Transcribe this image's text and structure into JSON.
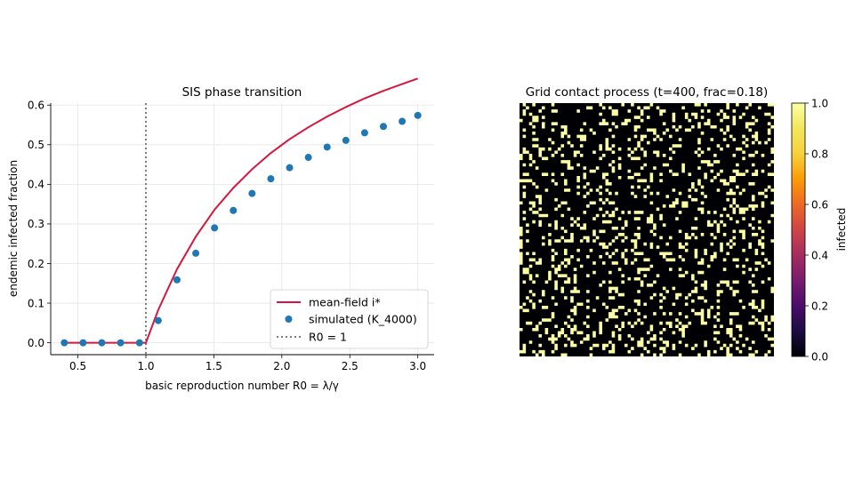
{
  "chart_data": [
    {
      "type": "line",
      "title": "SIS phase transition",
      "xlabel": "basic reproduction number R0 = λ/γ",
      "ylabel": "endemic infected fraction",
      "xlim": [
        0.3,
        3.12
      ],
      "ylim": [
        -0.03,
        0.605
      ],
      "x_ticks": [
        0.5,
        1.0,
        1.5,
        2.0,
        2.5,
        3.0
      ],
      "x_tick_labels": [
        "0.5",
        "1.0",
        "1.5",
        "2.0",
        "2.5",
        "3.0"
      ],
      "y_ticks": [
        0.0,
        0.1,
        0.2,
        0.3,
        0.4,
        0.5,
        0.6
      ],
      "y_tick_labels": [
        "0.0",
        "0.1",
        "0.2",
        "0.3",
        "0.4",
        "0.5",
        "0.6"
      ],
      "grid": true,
      "legend_position": "lower-right",
      "series": [
        {
          "name": "mean-field i*",
          "style": "line",
          "color": "#d6163e",
          "x": [
            0.4,
            0.538,
            0.676,
            0.814,
            0.953,
            1.0,
            1.091,
            1.229,
            1.367,
            1.505,
            1.643,
            1.781,
            1.919,
            2.057,
            2.195,
            2.333,
            2.471,
            2.609,
            2.747,
            2.885,
            3.0
          ],
          "y": [
            0,
            0,
            0,
            0,
            0,
            0,
            0.083,
            0.186,
            0.268,
            0.336,
            0.391,
            0.438,
            0.479,
            0.514,
            0.544,
            0.571,
            0.595,
            0.617,
            0.636,
            0.653,
            0.667
          ]
        },
        {
          "name": "simulated (K_4000)",
          "style": "markers",
          "color": "#1f77b4",
          "x": [
            0.4,
            0.538,
            0.676,
            0.814,
            0.953,
            1.091,
            1.229,
            1.367,
            1.505,
            1.643,
            1.781,
            1.919,
            2.057,
            2.195,
            2.333,
            2.471,
            2.609,
            2.747,
            2.885,
            3.0
          ],
          "y": [
            0,
            0,
            0,
            0,
            0,
            0.056,
            0.159,
            0.226,
            0.29,
            0.334,
            0.377,
            0.414,
            0.442,
            0.468,
            0.494,
            0.511,
            0.53,
            0.546,
            0.559,
            0.574
          ]
        },
        {
          "name": "R0 = 1",
          "style": "dotted-vline",
          "color": "#7f7f7f",
          "x": [
            1.0,
            1.0
          ],
          "y": [
            -0.03,
            0.605
          ]
        }
      ]
    },
    {
      "type": "heatmap",
      "title": "Grid contact process (t=400, frac=0.18)",
      "grid_size": [
        80,
        80
      ],
      "infected_fraction": 0.18,
      "value_range": [
        0.0,
        1.0
      ],
      "colormap": "inferno",
      "colors": {
        "infected": "#fcffa4",
        "susceptible": "#000004"
      },
      "colorbar": {
        "label": "infected",
        "ticks": [
          0.0,
          0.2,
          0.4,
          0.6,
          0.8,
          1.0
        ],
        "tick_labels": [
          "0.0",
          "0.2",
          "0.4",
          "0.6",
          "0.8",
          "1.0"
        ]
      }
    }
  ]
}
